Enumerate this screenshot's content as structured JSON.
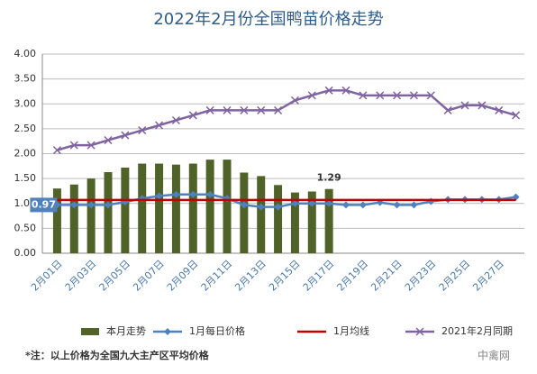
{
  "chart_data": {
    "type": "combo",
    "title": "2022年2月份全国鸭苗价格走势",
    "categories": [
      "2月01日",
      null,
      "2月03日",
      null,
      "2月05日",
      null,
      "2月07日",
      null,
      "2月09日",
      null,
      "2月11日",
      null,
      "2月13日",
      null,
      "2月15日",
      null,
      "2月17日",
      null,
      "2月19日",
      null,
      "2月21日",
      null,
      "2月23日",
      null,
      "2月25日",
      null,
      "2月27日",
      null
    ],
    "ylim": [
      0,
      4
    ],
    "yticks": [
      {
        "value": 0,
        "label": "0.00"
      },
      {
        "value": 0.5,
        "label": "0.50"
      },
      {
        "value": 1,
        "label": "1.00"
      },
      {
        "value": 1.5,
        "label": "1.50"
      },
      {
        "value": 2,
        "label": "2.00"
      },
      {
        "value": 2.5,
        "label": "2.50"
      },
      {
        "value": 3,
        "label": "3.00"
      },
      {
        "value": 3.5,
        "label": "3.50"
      },
      {
        "value": 4,
        "label": "4.00"
      }
    ],
    "grid": true,
    "legend": "bottom",
    "series": [
      {
        "name": "本月走势",
        "kind": "bar",
        "color": "#4f6228",
        "label_points": [
          16
        ],
        "values": [
          1.3,
          1.38,
          1.5,
          1.63,
          1.72,
          1.8,
          1.8,
          1.78,
          1.8,
          1.88,
          1.88,
          1.62,
          1.55,
          1.37,
          1.22,
          1.24,
          1.29,
          null,
          null,
          null,
          null,
          null,
          null,
          null,
          null,
          null,
          null,
          null
        ]
      },
      {
        "name": "1月每日价格",
        "kind": "line",
        "marker": "diamond",
        "color": "#4f81bd",
        "label_points": [
          0
        ],
        "values": [
          0.97,
          0.97,
          0.97,
          0.97,
          1.03,
          1.1,
          1.15,
          1.18,
          1.18,
          1.18,
          1.1,
          0.97,
          0.93,
          0.93,
          1.0,
          1.0,
          1.0,
          0.97,
          0.97,
          1.02,
          0.97,
          0.97,
          1.04,
          1.08,
          1.08,
          1.08,
          1.08,
          1.13
        ]
      },
      {
        "name": "1月均线",
        "kind": "line",
        "marker": "none",
        "color": "#c00000",
        "values": [
          1.07,
          1.07,
          1.07,
          1.07,
          1.07,
          1.07,
          1.07,
          1.07,
          1.07,
          1.07,
          1.07,
          1.07,
          1.07,
          1.07,
          1.07,
          1.07,
          1.07,
          1.07,
          1.07,
          1.07,
          1.07,
          1.07,
          1.07,
          1.07,
          1.07,
          1.07,
          1.07,
          1.07
        ]
      },
      {
        "name": "2021年2月同期",
        "kind": "line",
        "marker": "x",
        "color": "#8064a2",
        "values": [
          2.07,
          2.17,
          2.17,
          2.27,
          2.37,
          2.47,
          2.57,
          2.67,
          2.77,
          2.87,
          2.87,
          2.87,
          2.87,
          2.87,
          3.07,
          3.17,
          3.27,
          3.27,
          3.17,
          3.17,
          3.17,
          3.17,
          3.17,
          2.87,
          2.97,
          2.97,
          2.87,
          2.77
        ]
      }
    ],
    "note": "*注：以上价格为全国九大主产区平均价格",
    "watermark": "中禽网"
  }
}
